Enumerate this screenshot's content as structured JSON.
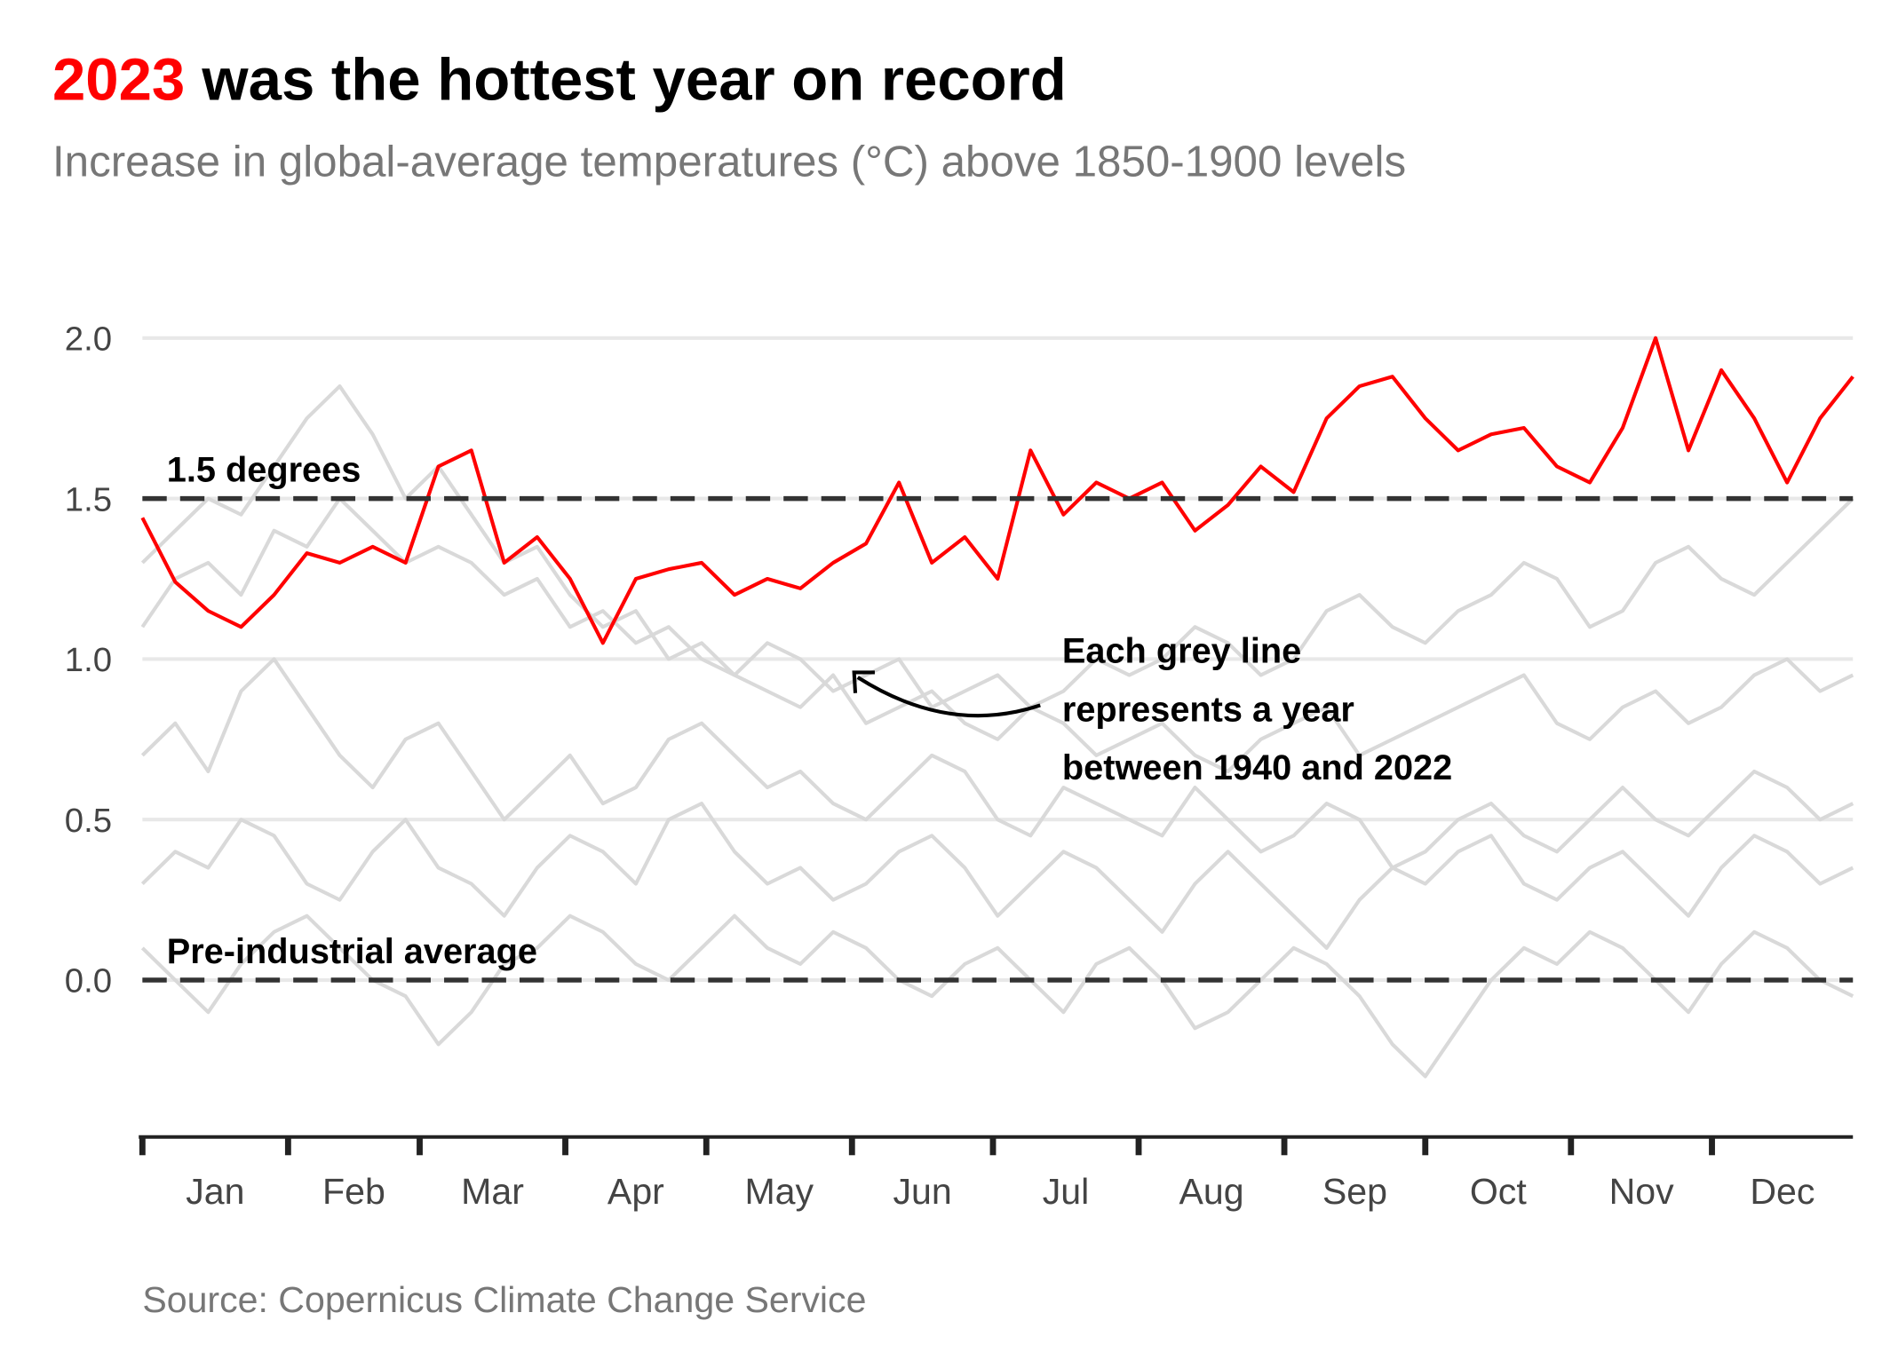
{
  "chart_data": {
    "type": "line",
    "title_parts": [
      "2023",
      "was the hottest year on record"
    ],
    "title_highlight_color": "#ff0000",
    "subtitle": "Increase in global-average temperatures (°C) above 1850-1900 levels",
    "source": "Source: Copernicus Climate Change Service",
    "annotation_lines": [
      "Each grey line",
      "represents a year",
      "between 1940 and 2022"
    ],
    "reference_lines": [
      {
        "value": 1.5,
        "label": "1.5 degrees"
      },
      {
        "value": 0,
        "label": "Pre-industrial average"
      }
    ],
    "grid": true,
    "xlim": [
      1,
      365
    ],
    "ylim": [
      -0.5,
      2.1
    ],
    "yticks": [
      {
        "value": 0,
        "label": "0.0"
      },
      0.5,
      {
        "value": 1,
        "label": "1.0"
      },
      1.5,
      {
        "value": 2,
        "label": "2.0"
      }
    ],
    "xticks": [
      {
        "value": 1,
        "label": "Jan"
      },
      {
        "value": 32,
        "label": "Feb"
      },
      {
        "value": 60,
        "label": "Mar"
      },
      {
        "value": 91,
        "label": "Apr"
      },
      {
        "value": 121,
        "label": "May"
      },
      {
        "value": 152,
        "label": "Jun"
      },
      {
        "value": 182,
        "label": "Jul"
      },
      {
        "value": 213,
        "label": "Aug"
      },
      {
        "value": 244,
        "label": "Sep"
      },
      {
        "value": 274,
        "label": "Oct"
      },
      {
        "value": 305,
        "label": "Nov"
      },
      {
        "value": 335,
        "label": "Dec"
      }
    ],
    "x": [
      1,
      8,
      15,
      22,
      29,
      36,
      43,
      50,
      57,
      64,
      71,
      78,
      85,
      92,
      99,
      106,
      113,
      120,
      127,
      134,
      141,
      148,
      155,
      162,
      169,
      176,
      183,
      190,
      197,
      204,
      211,
      218,
      225,
      232,
      239,
      246,
      253,
      260,
      267,
      274,
      281,
      288,
      295,
      302,
      309,
      316,
      323,
      330,
      337,
      344,
      351,
      358,
      365
    ],
    "series": [
      {
        "color": "#d9d9d9",
        "values": [
          0.1,
          0.0,
          -0.1,
          0.05,
          0.15,
          0.2,
          0.1,
          0.0,
          -0.05,
          -0.2,
          -0.1,
          0.05,
          0.1,
          0.2,
          0.15,
          0.05,
          0.0,
          0.1,
          0.2,
          0.1,
          0.05,
          0.15,
          0.1,
          0.0,
          -0.05,
          0.05,
          0.1,
          0.0,
          -0.1,
          0.05,
          0.1,
          0.0,
          -0.15,
          -0.1,
          0.0,
          0.1,
          0.05,
          -0.05,
          -0.2,
          -0.3,
          -0.15,
          0.0,
          0.1,
          0.05,
          0.15,
          0.1,
          0.0,
          -0.1,
          0.05,
          0.15,
          0.1,
          0.0,
          -0.05
        ]
      },
      {
        "color": "#d9d9d9",
        "values": [
          0.3,
          0.4,
          0.35,
          0.5,
          0.45,
          0.3,
          0.25,
          0.4,
          0.5,
          0.35,
          0.3,
          0.2,
          0.35,
          0.45,
          0.4,
          0.3,
          0.5,
          0.55,
          0.4,
          0.3,
          0.35,
          0.25,
          0.3,
          0.4,
          0.45,
          0.35,
          0.2,
          0.3,
          0.4,
          0.35,
          0.25,
          0.15,
          0.3,
          0.4,
          0.3,
          0.2,
          0.1,
          0.25,
          0.35,
          0.3,
          0.4,
          0.45,
          0.3,
          0.25,
          0.35,
          0.4,
          0.3,
          0.2,
          0.35,
          0.45,
          0.4,
          0.3,
          0.35
        ]
      },
      {
        "color": "#d9d9d9",
        "values": [
          0.7,
          0.8,
          0.65,
          0.9,
          1.0,
          0.85,
          0.7,
          0.6,
          0.75,
          0.8,
          0.65,
          0.5,
          0.6,
          0.7,
          0.55,
          0.6,
          0.75,
          0.8,
          0.7,
          0.6,
          0.65,
          0.55,
          0.5,
          0.6,
          0.7,
          0.65,
          0.5,
          0.45,
          0.6,
          0.55,
          0.5,
          0.45,
          0.6,
          0.5,
          0.4,
          0.45,
          0.55,
          0.5,
          0.35,
          0.4,
          0.5,
          0.55,
          0.45,
          0.4,
          0.5,
          0.6,
          0.5,
          0.45,
          0.55,
          0.65,
          0.6,
          0.5,
          0.55
        ]
      },
      {
        "color": "#d9d9d9",
        "values": [
          1.3,
          1.4,
          1.5,
          1.45,
          1.6,
          1.75,
          1.85,
          1.7,
          1.5,
          1.6,
          1.45,
          1.3,
          1.35,
          1.2,
          1.1,
          1.15,
          1.0,
          1.05,
          0.95,
          0.9,
          0.85,
          0.95,
          0.8,
          0.85,
          0.9,
          0.8,
          0.75,
          0.85,
          0.8,
          0.7,
          0.75,
          0.8,
          0.7,
          0.65,
          0.75,
          0.8,
          0.85,
          0.7,
          0.75,
          0.8,
          0.85,
          0.9,
          0.95,
          0.8,
          0.75,
          0.85,
          0.9,
          0.8,
          0.85,
          0.95,
          1.0,
          0.9,
          0.95
        ]
      },
      {
        "color": "#d9d9d9",
        "values": [
          1.1,
          1.25,
          1.3,
          1.2,
          1.4,
          1.35,
          1.5,
          1.4,
          1.3,
          1.35,
          1.3,
          1.2,
          1.25,
          1.1,
          1.15,
          1.05,
          1.1,
          1.0,
          0.95,
          1.05,
          1.0,
          0.9,
          0.95,
          1.0,
          0.85,
          0.9,
          0.95,
          0.85,
          0.9,
          1.0,
          0.95,
          1.0,
          1.1,
          1.05,
          0.95,
          1.0,
          1.15,
          1.2,
          1.1,
          1.05,
          1.15,
          1.2,
          1.3,
          1.25,
          1.1,
          1.15,
          1.3,
          1.35,
          1.25,
          1.2,
          1.3,
          1.4,
          1.5
        ]
      },
      {
        "color": "#ff0000",
        "values": [
          1.44,
          1.24,
          1.15,
          1.1,
          1.2,
          1.33,
          1.3,
          1.35,
          1.3,
          1.6,
          1.65,
          1.3,
          1.38,
          1.25,
          1.05,
          1.25,
          1.28,
          1.3,
          1.2,
          1.25,
          1.22,
          1.3,
          1.36,
          1.55,
          1.3,
          1.38,
          1.25,
          1.65,
          1.45,
          1.55,
          1.5,
          1.55,
          1.4,
          1.48,
          1.6,
          1.52,
          1.75,
          1.85,
          1.88,
          1.75,
          1.65,
          1.7,
          1.72,
          1.6,
          1.55,
          1.72,
          2.0,
          1.65,
          1.9,
          1.75,
          1.55,
          1.75,
          1.88
        ]
      }
    ]
  }
}
